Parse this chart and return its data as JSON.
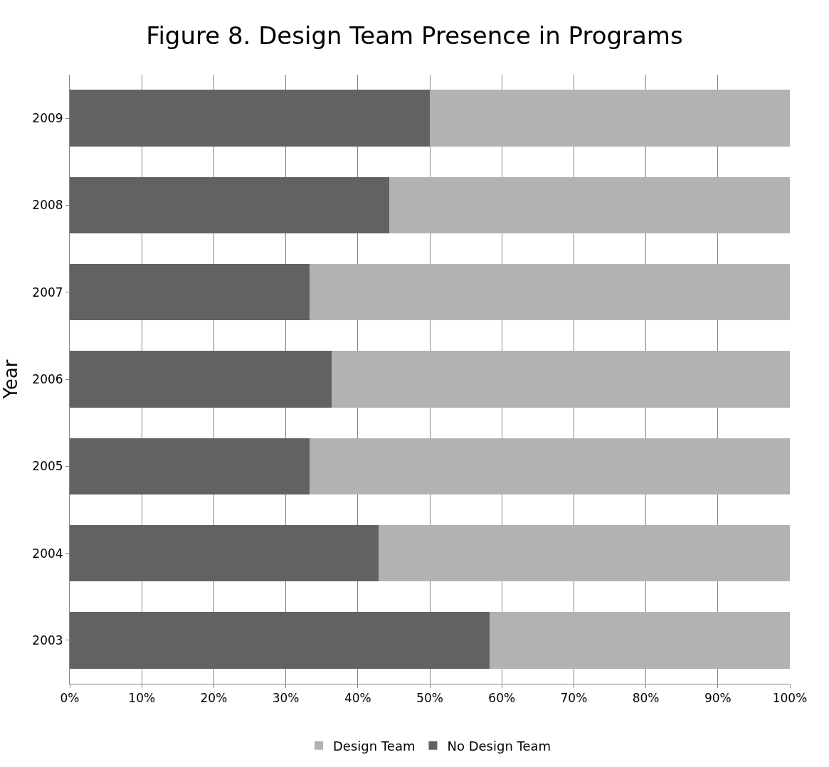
{
  "chart_data": {
    "type": "bar",
    "title": "Figure 8. Design Team Presence in Programs",
    "ylabel": "Year",
    "orientation": "horizontal",
    "stacked": true,
    "categories": [
      "2009",
      "2008",
      "2007",
      "2006",
      "2005",
      "2004",
      "2003"
    ],
    "series": [
      {
        "name": "No Design Team",
        "color": "#626262",
        "values": [
          50.0,
          44.4,
          33.3,
          36.4,
          33.3,
          42.9,
          58.3
        ]
      },
      {
        "name": "Design Team",
        "color": "#b2b2b2",
        "values": [
          50.0,
          55.6,
          66.7,
          63.6,
          66.7,
          57.1,
          41.7
        ]
      }
    ],
    "xlim": [
      0,
      100
    ],
    "xticks": [
      {
        "value": 0,
        "label": "0%"
      },
      {
        "value": 10,
        "label": "10%"
      },
      {
        "value": 20,
        "label": "20%"
      },
      {
        "value": 30,
        "label": "30%"
      },
      {
        "value": 40,
        "label": "40%"
      },
      {
        "value": 50,
        "label": "50%"
      },
      {
        "value": 60,
        "label": "60%"
      },
      {
        "value": 70,
        "label": "70%"
      },
      {
        "value": 80,
        "label": "80%"
      },
      {
        "value": 90,
        "label": "90%"
      },
      {
        "value": 100,
        "label": "100%"
      }
    ],
    "grid": "x",
    "legend": "bottom"
  }
}
